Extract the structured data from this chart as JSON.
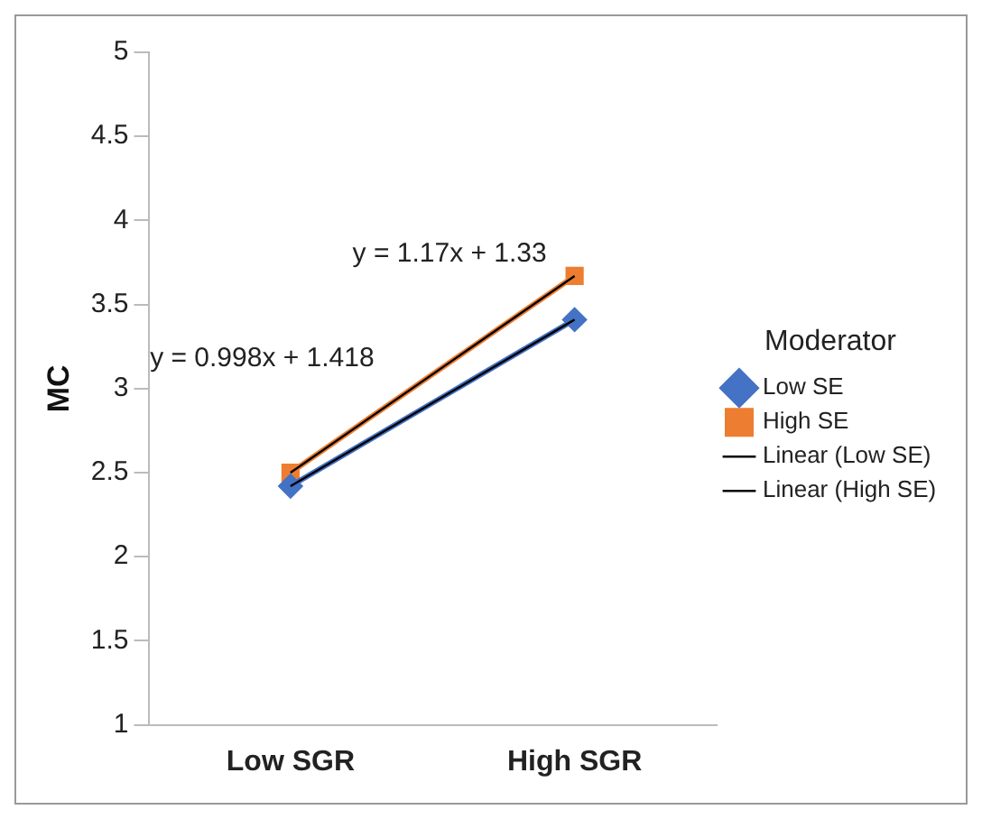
{
  "chart_data": {
    "type": "line",
    "ylabel": "MC",
    "legend_title": "Moderator",
    "categories": [
      "Low SGR",
      "High SGR"
    ],
    "series": [
      {
        "name": "Low SE",
        "color": "#4472c4",
        "values": [
          2.42,
          3.41
        ],
        "marker": "diamond"
      },
      {
        "name": "High SE",
        "color": "#ed7d31",
        "values": [
          2.5,
          3.67
        ],
        "marker": "square"
      },
      {
        "name": "Linear (Low SE)",
        "color": "#000000",
        "values": [
          2.42,
          3.41
        ],
        "marker": "none"
      },
      {
        "name": "Linear (High SE)",
        "color": "#000000",
        "values": [
          2.5,
          3.67
        ],
        "marker": "none"
      }
    ],
    "ylim": [
      1,
      5
    ],
    "yticks": [
      1,
      1.5,
      2,
      2.5,
      3,
      3.5,
      4,
      4.5,
      5
    ],
    "grid": false,
    "legend": "right",
    "annotations": [
      "y = 0.998x + 1.418",
      "y = 1.17x + 1.33"
    ]
  }
}
